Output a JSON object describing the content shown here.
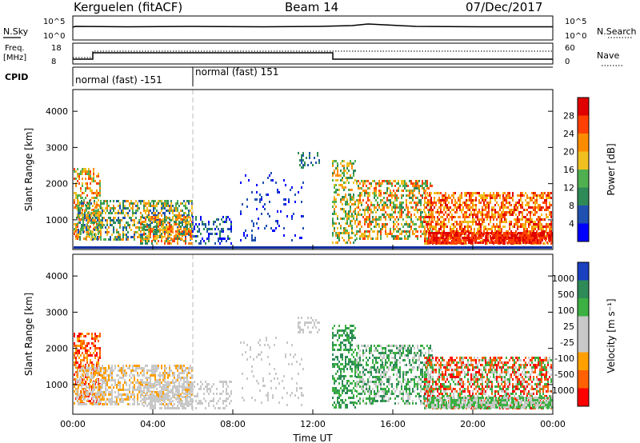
{
  "header": {
    "station": "Kerguelen (fitACF)",
    "beam": "Beam 14",
    "date": "07/Dec/2017"
  },
  "top_panels": {
    "nsky_label": "N.Sky",
    "nsky_ticks": [
      "10^5",
      "10^0"
    ],
    "nsearch_label": "N.Search",
    "nsearch_ticks": [
      "10^5",
      "10^0"
    ],
    "freq_label_1": "Freq.",
    "freq_label_2": "[MHz]",
    "freq_ticks": [
      "18",
      "8"
    ],
    "nave_label": "Nave",
    "nave_ticks": [
      "60",
      "0"
    ],
    "cpid_label": "CPID",
    "cpid_segments": [
      {
        "label": "normal (fast) -151",
        "start_hour": 0
      },
      {
        "label": "normal (fast) 151",
        "start_hour": 6
      }
    ]
  },
  "chart_data": [
    {
      "type": "heatmap",
      "name": "power",
      "ylabel": "Slant Range [km]",
      "xlim": [
        0,
        24
      ],
      "ylim": [
        180,
        4600
      ],
      "yticks": [
        "1000",
        "2000",
        "3000",
        "4000"
      ],
      "colorbar_label": "Power [dB]",
      "colorbar_ticks": [
        "4",
        "8",
        "12",
        "16",
        "20",
        "24",
        "28"
      ],
      "colors": [
        "#0000ff",
        "#2050b0",
        "#2e8b57",
        "#50b050",
        "#f0c020",
        "#ff8c00",
        "#ff4000",
        "#e00000"
      ]
    },
    {
      "type": "heatmap",
      "name": "velocity",
      "ylabel": "Slant Range [km]",
      "xlabel": "Time UT",
      "xlim": [
        0,
        24
      ],
      "ylim": [
        180,
        4600
      ],
      "yticks": [
        "1000",
        "2000",
        "3000",
        "4000"
      ],
      "xticks": [
        "00:00",
        "04:00",
        "08:00",
        "12:00",
        "16:00",
        "20:00",
        "00:00"
      ],
      "colorbar_label": "Velocity [m s⁻¹]",
      "colorbar_ticks": [
        "1000",
        "500",
        "100",
        "25",
        "-25",
        "-100",
        "-500",
        "-1000"
      ],
      "colors": [
        "#1840c0",
        "#2e8b57",
        "#3cb043",
        "#c8c8c8",
        "#c8c8c8",
        "#ffa000",
        "#ff6000",
        "#ff0000"
      ]
    }
  ]
}
